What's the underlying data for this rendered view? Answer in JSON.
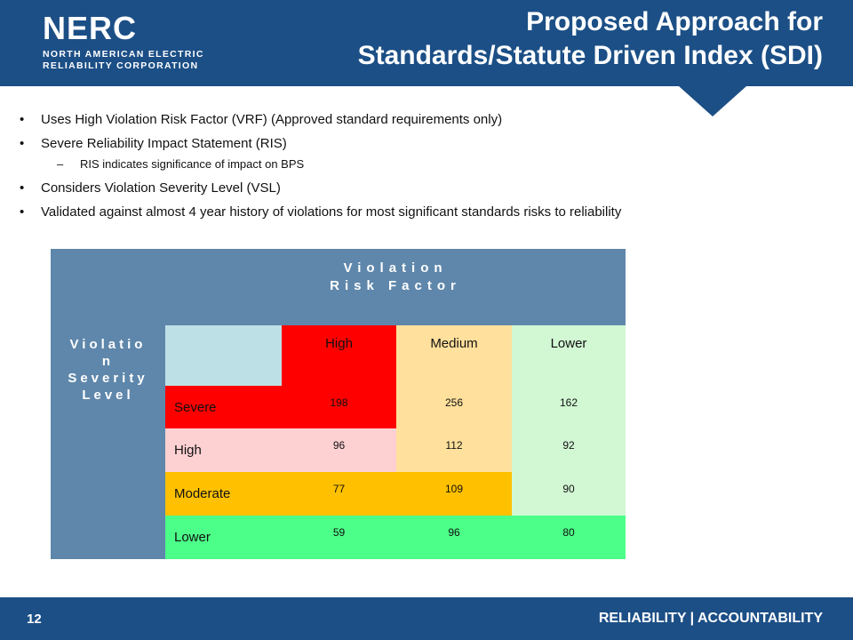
{
  "header": {
    "logo_word": "NERC",
    "logo_line1": "NORTH AMERICAN ELECTRIC",
    "logo_line2": "RELIABILITY CORPORATION",
    "title_line1": "Proposed Approach for",
    "title_line2": "Standards/Statute Driven Index (SDI)",
    "color": "#1c4f86"
  },
  "bullets": [
    "Uses High Violation Risk Factor (VRF) (Approved standard requirements only)",
    "Severe Reliability Impact Statement (RIS)",
    "RIS indicates significance of impact on BPS",
    "Considers Violation Severity Level (VSL)",
    "Validated against almost 4 year history of violations for most significant standards risks to reliability"
  ],
  "table": {
    "vrf_line1": "Violation",
    "vrf_line2": "Risk Factor",
    "vsl_line1": "Violatio",
    "vsl_line2": "n",
    "vsl_line3": "Severity",
    "vsl_line4": "Level",
    "columns": [
      "High",
      "Medium",
      "Lower"
    ],
    "rows": [
      {
        "label": "Severe",
        "values": [
          "198",
          "256",
          "162"
        ]
      },
      {
        "label": "High",
        "values": [
          "96",
          "112",
          "92"
        ]
      },
      {
        "label": "Moderate",
        "values": [
          "77",
          "109",
          "90"
        ]
      },
      {
        "label": "Lower",
        "values": [
          "59",
          "96",
          "80"
        ]
      }
    ]
  },
  "footer": {
    "page_number": "12",
    "tagline": "RELIABILITY | ACCOUNTABILITY"
  }
}
